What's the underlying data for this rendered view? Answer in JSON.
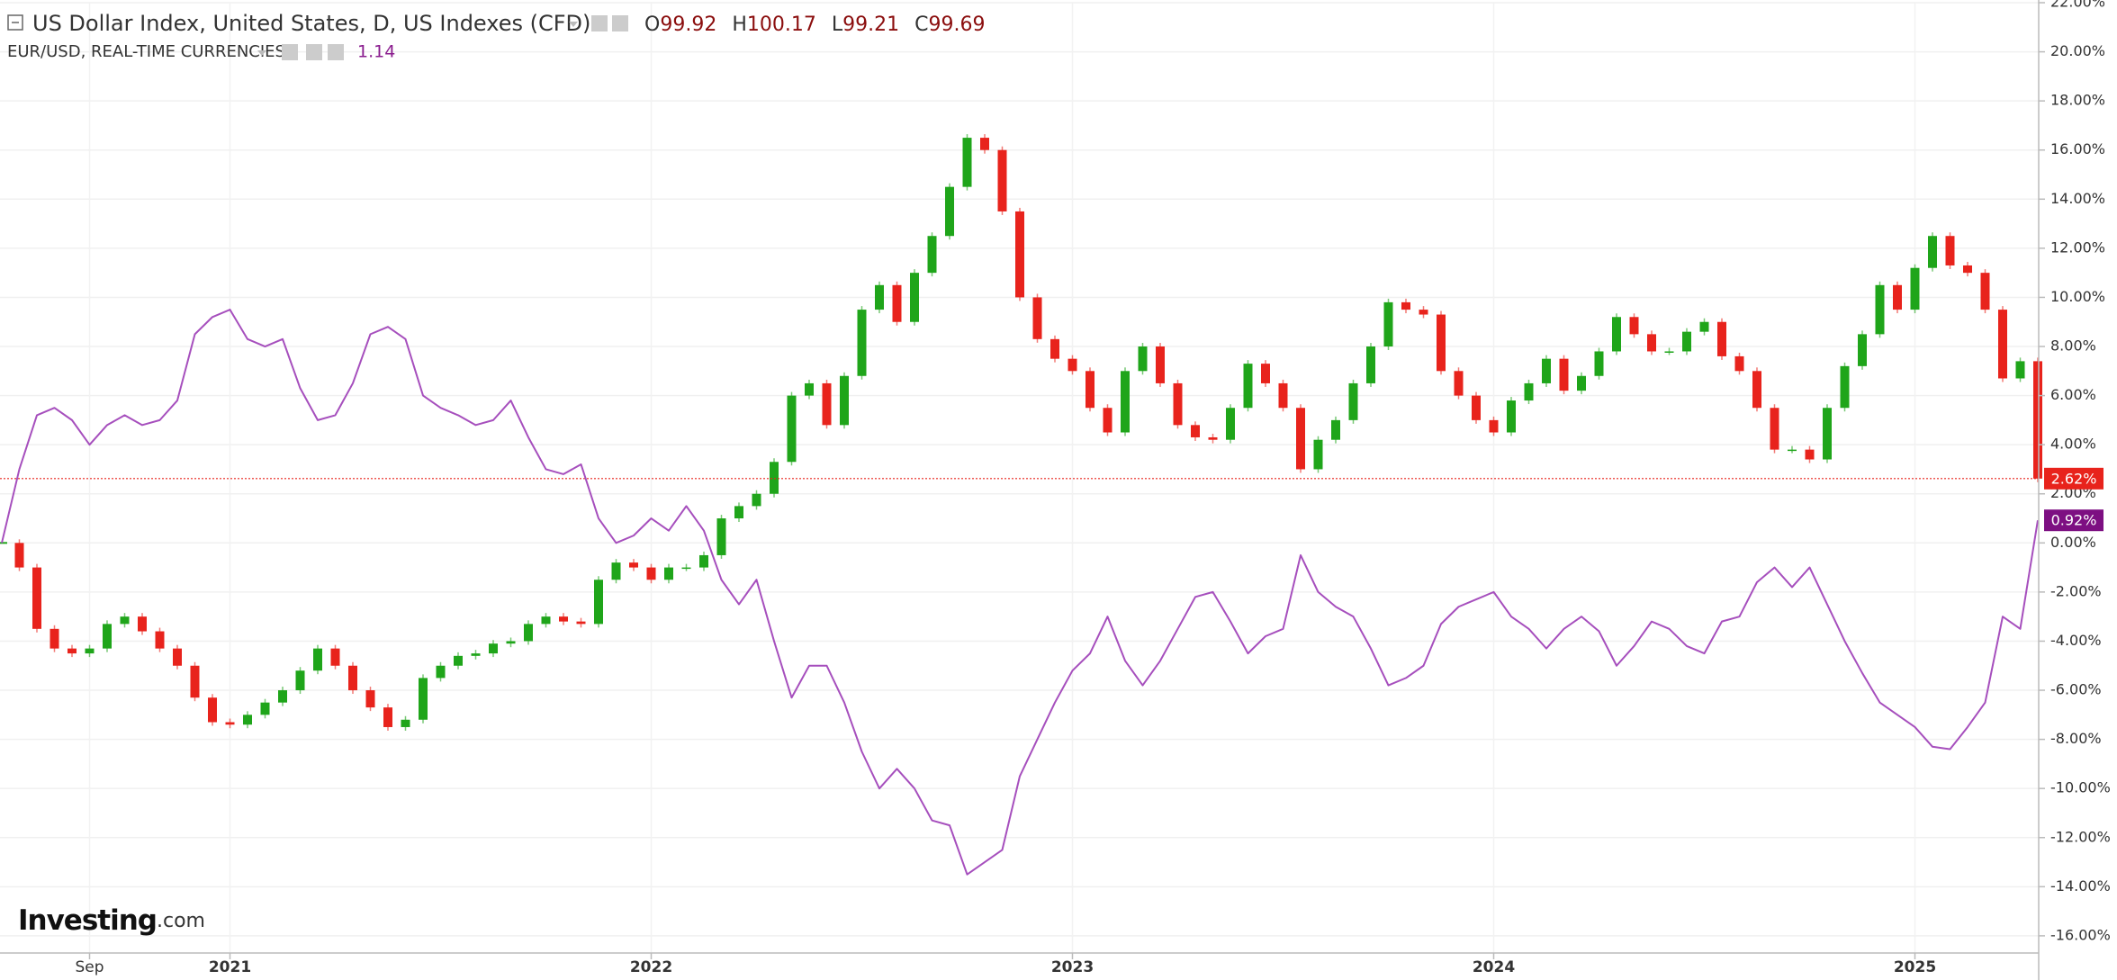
{
  "chart_data": {
    "type": "combo",
    "watermark": {
      "brand": "Investing",
      "suffix": ".com"
    },
    "categories": [
      null,
      null,
      null,
      null,
      null,
      "Sep",
      null,
      null,
      null,
      null,
      null,
      null,
      null,
      "2021",
      null,
      null,
      null,
      null,
      null,
      null,
      null,
      null,
      null,
      null,
      null,
      null,
      null,
      null,
      null,
      null,
      null,
      null,
      null,
      null,
      null,
      null,
      null,
      "2022",
      null,
      null,
      null,
      null,
      null,
      null,
      null,
      null,
      null,
      null,
      null,
      null,
      null,
      null,
      null,
      null,
      null,
      null,
      null,
      null,
      null,
      null,
      null,
      "2023",
      null,
      null,
      null,
      null,
      null,
      null,
      null,
      null,
      null,
      null,
      null,
      null,
      null,
      null,
      null,
      null,
      null,
      null,
      null,
      null,
      null,
      null,
      null,
      "2024",
      null,
      null,
      null,
      null,
      null,
      null,
      null,
      null,
      null,
      null,
      null,
      null,
      null,
      null,
      null,
      null,
      null,
      null,
      null,
      null,
      null,
      null,
      null,
      "2025",
      null,
      null,
      null,
      null,
      null,
      null,
      null
    ],
    "ylim": [
      -16.7,
      22
    ],
    "yticks": [
      {
        "value": -16,
        "label": "-16.00%"
      },
      {
        "value": -14,
        "label": "-14.00%"
      },
      {
        "value": -12,
        "label": "-12.00%"
      },
      {
        "value": -10,
        "label": "-10.00%"
      },
      {
        "value": -8,
        "label": "-8.00%"
      },
      {
        "value": -6,
        "label": "-6.00%"
      },
      {
        "value": -4,
        "label": "-4.00%"
      },
      {
        "value": -2,
        "label": "-2.00%"
      },
      {
        "value": 0,
        "label": "0.00%"
      },
      {
        "value": 2,
        "label": "2.00%"
      },
      {
        "value": 4,
        "label": "4.00%"
      },
      {
        "value": 6,
        "label": "6.00%"
      },
      {
        "value": 8,
        "label": "8.00%"
      },
      {
        "value": 10,
        "label": "10.00%"
      },
      {
        "value": 12,
        "label": "12.00%"
      },
      {
        "value": 14,
        "label": "14.00%"
      },
      {
        "value": 16,
        "label": "16.00%"
      },
      {
        "value": 18,
        "label": "18.00%"
      },
      {
        "value": 20,
        "label": "20.00%"
      },
      {
        "value": 22,
        "label": "22.00%"
      }
    ],
    "grid": true,
    "series": [
      {
        "name": "US Dollar Index, United States, D, US Indexes (CFD)",
        "type": "candle",
        "color": "#e8231c",
        "up_color": "#1fa51a",
        "price_line": true,
        "ohlc": [
          {
            "label": "O",
            "value": 99.92
          },
          {
            "label": "H",
            "value": 100.17
          },
          {
            "label": "L",
            "value": 99.21
          },
          {
            "label": "C",
            "value": 99.69
          }
        ],
        "values": [
          0,
          -1,
          -3.5,
          -4.3,
          -4.5,
          -4.3,
          -3.3,
          -3,
          -3.6,
          -4.3,
          -5,
          -6.3,
          -7.3,
          -7.4,
          -7,
          -6.5,
          -6,
          -5.2,
          -4.3,
          -5,
          -6,
          -6.7,
          -7.5,
          -7.2,
          -5.5,
          -5,
          -4.6,
          -4.5,
          -4.1,
          -4,
          -3.3,
          -3,
          -3.2,
          -3.3,
          -1.5,
          -0.8,
          -1,
          -1.5,
          -1,
          -1,
          -0.5,
          1,
          1.5,
          2,
          3.3,
          6,
          6.5,
          4.8,
          6.8,
          9.5,
          10.5,
          9,
          11,
          12.5,
          14.5,
          16.5,
          16,
          13.5,
          10,
          8.3,
          7.5,
          7,
          5.5,
          4.5,
          7,
          8,
          6.5,
          4.8,
          4.3,
          4.2,
          5.5,
          7.3,
          6.5,
          5.5,
          3,
          4.2,
          5,
          6.5,
          8,
          9.8,
          9.5,
          9.3,
          7,
          6,
          5,
          4.5,
          5.8,
          6.5,
          7.5,
          6.2,
          6.8,
          7.8,
          9.2,
          8.5,
          7.8,
          7.8,
          8.6,
          9,
          7.6,
          7,
          5.5,
          3.8,
          3.8,
          3.4,
          5.5,
          7.2,
          8.5,
          10.5,
          9.5,
          11.2,
          12.5,
          11.3,
          11,
          9.5,
          6.7,
          7.4,
          2.62
        ],
        "value_labels": [
          null,
          null,
          null,
          null,
          null,
          null,
          null,
          null,
          null,
          null,
          null,
          null,
          null,
          null,
          null,
          null,
          null,
          null,
          null,
          null,
          null,
          null,
          null,
          null,
          null,
          null,
          null,
          null,
          null,
          null,
          null,
          null,
          null,
          null,
          null,
          null,
          null,
          null,
          null,
          null,
          null,
          null,
          null,
          null,
          null,
          null,
          null,
          null,
          null,
          null,
          null,
          null,
          null,
          null,
          null,
          null,
          null,
          null,
          null,
          null,
          null,
          null,
          null,
          null,
          null,
          null,
          null,
          null,
          null,
          null,
          null,
          null,
          null,
          null,
          null,
          null,
          null,
          null,
          null,
          null,
          null,
          null,
          null,
          null,
          null,
          null,
          null,
          null,
          null,
          null,
          null,
          null,
          null,
          null,
          null,
          null,
          null,
          null,
          null,
          null,
          null,
          null,
          null,
          null,
          null,
          null,
          null,
          null,
          null,
          null,
          null,
          null,
          null,
          null,
          null,
          null,
          "2.62%"
        ]
      },
      {
        "name": "EUR/USD, REAL-TIME CURRENCIES",
        "type": "line",
        "color": "#a64fbd",
        "label_color": "#7d0f82",
        "last_price": 1.14,
        "values": [
          0,
          3,
          5.2,
          5.5,
          5,
          4,
          4.8,
          5.2,
          4.8,
          5,
          5.8,
          8.5,
          9.2,
          9.5,
          8.3,
          8,
          8.3,
          6.3,
          5,
          5.2,
          6.5,
          8.5,
          8.8,
          8.3,
          6,
          5.5,
          5.2,
          4.8,
          5,
          5.8,
          4.3,
          3,
          2.8,
          3.2,
          1,
          0,
          0.3,
          1,
          0.5,
          1.5,
          0.5,
          -1.5,
          -2.5,
          -1.5,
          -4,
          -6.3,
          -5,
          -5,
          -6.5,
          -8.5,
          -10,
          -9.2,
          -10,
          -11.3,
          -11.5,
          -13.5,
          -13,
          -12.5,
          -9.5,
          -8,
          -6.5,
          -5.2,
          -4.5,
          -3,
          -4.8,
          -5.8,
          -4.8,
          -3.5,
          -2.2,
          -2,
          -3.2,
          -4.5,
          -3.8,
          -3.5,
          -0.5,
          -2,
          -2.6,
          -3,
          -4.3,
          -5.8,
          -5.5,
          -5,
          -3.3,
          -2.6,
          -2.3,
          -2,
          -3,
          -3.5,
          -4.3,
          -3.5,
          -3,
          -3.6,
          -5,
          -4.2,
          -3.2,
          -3.5,
          -4.2,
          -4.5,
          -3.2,
          -3,
          -1.6,
          -1,
          -1.8,
          -1,
          -2.5,
          -4,
          -5.3,
          -6.5,
          -7,
          -7.5,
          -8.3,
          -8.4,
          -7.5,
          -6.5,
          -3,
          -3.5,
          0.92
        ],
        "value_labels": [
          null,
          null,
          null,
          null,
          null,
          null,
          null,
          null,
          null,
          null,
          null,
          null,
          null,
          null,
          null,
          null,
          null,
          null,
          null,
          null,
          null,
          null,
          null,
          null,
          null,
          null,
          null,
          null,
          null,
          null,
          null,
          null,
          null,
          null,
          null,
          null,
          null,
          null,
          null,
          null,
          null,
          null,
          null,
          null,
          null,
          null,
          null,
          null,
          null,
          null,
          null,
          null,
          null,
          null,
          null,
          null,
          null,
          null,
          null,
          null,
          null,
          null,
          null,
          null,
          null,
          null,
          null,
          null,
          null,
          null,
          null,
          null,
          null,
          null,
          null,
          null,
          null,
          null,
          null,
          null,
          null,
          null,
          null,
          null,
          null,
          null,
          null,
          null,
          null,
          null,
          null,
          null,
          null,
          null,
          null,
          null,
          null,
          null,
          null,
          null,
          null,
          null,
          null,
          null,
          null,
          null,
          null,
          null,
          null,
          null,
          null,
          null,
          null,
          null,
          null,
          null,
          "0.92%"
        ]
      }
    ]
  }
}
